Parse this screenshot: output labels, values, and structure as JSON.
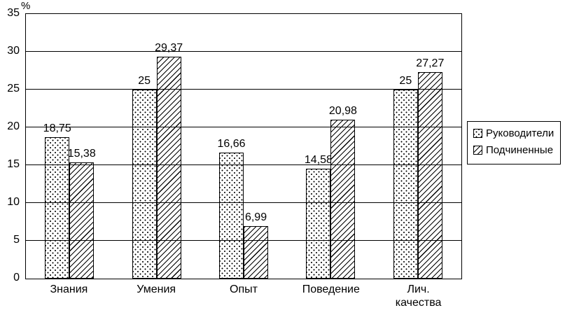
{
  "chart": {
    "y_axis_unit": "%"
  },
  "chart_data": {
    "type": "bar",
    "title": "",
    "xlabel": "",
    "ylabel": "%",
    "categories": [
      "Знания",
      "Умения",
      "Опыт",
      "Поведение",
      "Лич.\nкачества"
    ],
    "series": [
      {
        "key": "managers",
        "name": "Руководители",
        "pattern": "dots",
        "values": [
          18.75,
          25,
          16.66,
          14.58,
          25
        ],
        "labels": [
          "18,75",
          "25",
          "16,66",
          "14,58",
          "25"
        ]
      },
      {
        "key": "subordinates",
        "name": "Подчиненные",
        "pattern": "diagonal",
        "values": [
          15.38,
          29.37,
          6.99,
          20.98,
          27.27
        ],
        "labels": [
          "15,38",
          "29,37",
          "6,99",
          "20,98",
          "27,27"
        ]
      }
    ],
    "ylim": [
      0,
      35
    ],
    "yticks": [
      0,
      5,
      10,
      15,
      20,
      25,
      30,
      35
    ],
    "grid": true,
    "legend_position": "right"
  }
}
